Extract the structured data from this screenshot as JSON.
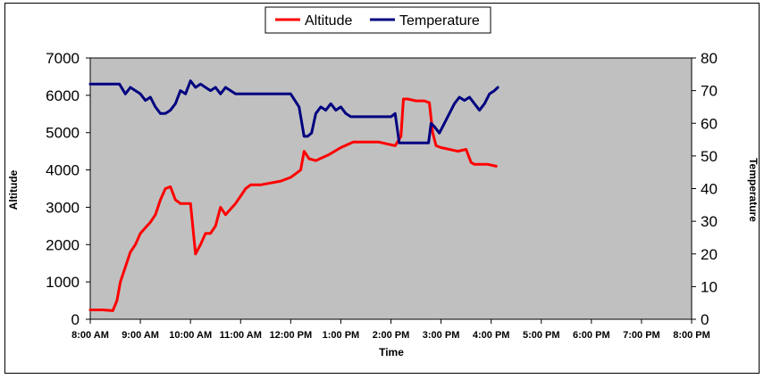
{
  "chart_data": {
    "type": "line",
    "xlabel": "Time",
    "ylabel_left": "Altitude",
    "ylabel_right": "Temperature",
    "x_ticks": [
      "8:00 AM",
      "9:00 AM",
      "10:00 AM",
      "11:00 AM",
      "12:00 PM",
      "1:00 PM",
      "2:00 PM",
      "3:00 PM",
      "4:00 PM",
      "5:00 PM",
      "6:00 PM",
      "7:00 PM",
      "8:00 PM"
    ],
    "xlim": [
      "8:00 AM",
      "8:00 PM"
    ],
    "ylim_left": [
      0,
      7000
    ],
    "yticks_left": [
      "0",
      "1000",
      "2000",
      "3000",
      "4000",
      "5000",
      "6000",
      "7000"
    ],
    "ylim_right": [
      0,
      80
    ],
    "yticks_right": [
      "0",
      "10",
      "20",
      "30",
      "40",
      "50",
      "60",
      "70",
      "80"
    ],
    "legend_position": "top-center",
    "plot_background": "#c0c0c0",
    "series": [
      {
        "name": "Altitude",
        "color": "#ff0000",
        "axis": "left",
        "x": [
          "8:00 AM",
          "8:15 AM",
          "8:27 AM",
          "8:32 AM",
          "8:36 AM",
          "8:42 AM",
          "8:48 AM",
          "8:54 AM",
          "9:00 AM",
          "9:06 AM",
          "9:12 AM",
          "9:18 AM",
          "9:24 AM",
          "9:30 AM",
          "9:36 AM",
          "9:42 AM",
          "9:48 AM",
          "9:54 AM",
          "10:00 AM",
          "10:06 AM",
          "10:12 AM",
          "10:18 AM",
          "10:24 AM",
          "10:30 AM",
          "10:36 AM",
          "10:42 AM",
          "10:48 AM",
          "10:54 AM",
          "11:00 AM",
          "11:06 AM",
          "11:12 AM",
          "11:24 AM",
          "11:36 AM",
          "11:48 AM",
          "12:00 PM",
          "12:06 PM",
          "12:12 PM",
          "12:16 PM",
          "12:22 PM",
          "12:30 PM",
          "12:45 PM",
          "1:00 PM",
          "1:15 PM",
          "1:30 PM",
          "1:45 PM",
          "1:55 PM",
          "2:05 PM",
          "2:12 PM",
          "2:15 PM",
          "2:20 PM",
          "2:30 PM",
          "2:40 PM",
          "2:46 PM",
          "2:50 PM",
          "2:54 PM",
          "3:00 PM",
          "3:10 PM",
          "3:20 PM",
          "3:30 PM",
          "3:36 PM",
          "3:40 PM",
          "3:48 PM",
          "3:56 PM",
          "4:06 PM"
        ],
        "values": [
          250,
          250,
          230,
          500,
          1000,
          1400,
          1800,
          2000,
          2300,
          2450,
          2600,
          2800,
          3200,
          3500,
          3550,
          3200,
          3100,
          3100,
          3100,
          1750,
          2000,
          2300,
          2300,
          2500,
          3000,
          2800,
          2950,
          3100,
          3300,
          3500,
          3600,
          3600,
          3650,
          3700,
          3800,
          3900,
          4000,
          4500,
          4300,
          4250,
          4400,
          4600,
          4750,
          4750,
          4750,
          4700,
          4650,
          4900,
          5900,
          5900,
          5850,
          5850,
          5800,
          5000,
          4650,
          4600,
          4550,
          4500,
          4550,
          4200,
          4150,
          4150,
          4150,
          4100
        ]
      },
      {
        "name": "Temperature",
        "color": "#000080",
        "axis": "right",
        "x": [
          "8:00 AM",
          "8:30 AM",
          "8:35 AM",
          "8:42 AM",
          "8:48 AM",
          "8:54 AM",
          "9:00 AM",
          "9:06 AM",
          "9:12 AM",
          "9:18 AM",
          "9:24 AM",
          "9:30 AM",
          "9:36 AM",
          "9:42 AM",
          "9:48 AM",
          "9:54 AM",
          "10:00 AM",
          "10:06 AM",
          "10:12 AM",
          "10:18 AM",
          "10:24 AM",
          "10:30 AM",
          "10:36 AM",
          "10:42 AM",
          "10:48 AM",
          "10:54 AM",
          "11:00 AM",
          "11:06 AM",
          "11:12 AM",
          "11:30 AM",
          "12:00 PM",
          "12:10 PM",
          "12:16 PM",
          "12:20 PM",
          "12:25 PM",
          "12:30 PM",
          "12:36 PM",
          "12:42 PM",
          "12:48 PM",
          "12:54 PM",
          "1:00 PM",
          "1:06 PM",
          "1:12 PM",
          "1:18 PM",
          "1:24 PM",
          "1:30 PM",
          "1:45 PM",
          "2:00 PM",
          "2:05 PM",
          "2:10 PM",
          "2:15 PM",
          "2:30 PM",
          "2:45 PM",
          "2:48 PM",
          "2:52 PM",
          "2:58 PM",
          "3:04 PM",
          "3:10 PM",
          "3:16 PM",
          "3:22 PM",
          "3:28 PM",
          "3:34 PM",
          "3:40 PM",
          "3:46 PM",
          "3:52 PM",
          "3:58 PM",
          "4:04 PM",
          "4:08 PM"
        ],
        "values": [
          72,
          72,
          72,
          69,
          71,
          70,
          69,
          67,
          68,
          65,
          63,
          63,
          64,
          66,
          70,
          69,
          73,
          71,
          72,
          71,
          70,
          71,
          69,
          71,
          70,
          69,
          69,
          69,
          69,
          69,
          69,
          65,
          56,
          56,
          57,
          63,
          65,
          64,
          66,
          64,
          65,
          63,
          62,
          62,
          62,
          62,
          62,
          62,
          63,
          54,
          54,
          54,
          54,
          60,
          59,
          57,
          60,
          63,
          66,
          68,
          67,
          68,
          66,
          64,
          66,
          69,
          70,
          71
        ]
      }
    ]
  }
}
